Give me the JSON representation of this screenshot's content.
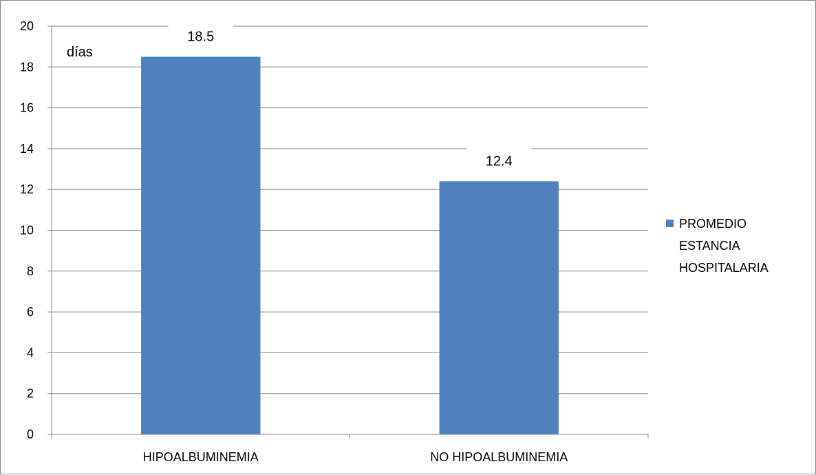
{
  "chart_data": {
    "type": "bar",
    "categories": [
      "HIPOALBUMINEMIA",
      "NO HIPOALBUMINEMIA"
    ],
    "series": [
      {
        "name": "PROMEDIO ESTANCIA HOSPITALARIA",
        "values": [
          18.5,
          12.4
        ]
      }
    ],
    "data_labels": [
      "18.5",
      "12.4"
    ],
    "ylabel": "días",
    "ylim": [
      0,
      20
    ],
    "yticks": [
      0,
      2,
      4,
      6,
      8,
      10,
      12,
      14,
      16,
      18,
      20
    ],
    "grid": true,
    "legend": {
      "placement": "right",
      "lines": [
        "PROMEDIO",
        "ESTANCIA",
        "HOSPITALARIA"
      ]
    },
    "colors": {
      "bar": "#4F81BD",
      "grid": "#868686",
      "axis": "#868686"
    }
  }
}
